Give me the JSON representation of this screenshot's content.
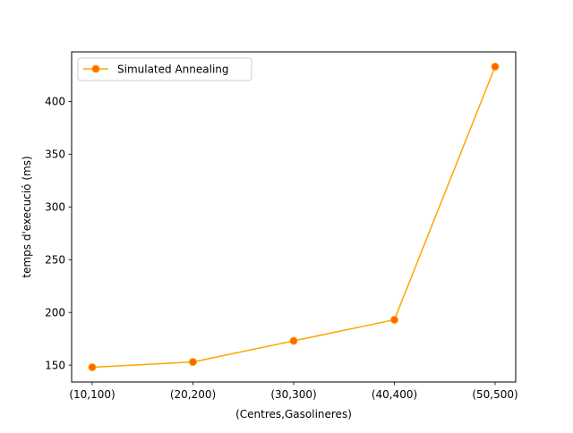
{
  "chart_data": {
    "type": "line",
    "title": "",
    "xlabel": "(Centres,Gasolineres)",
    "ylabel": "temps d'execució (ms)",
    "categories": [
      "(10,100)",
      "(20,200)",
      "(30,300)",
      "(40,400)",
      "(50,500)"
    ],
    "series": [
      {
        "name": "Simulated Annealing",
        "values": [
          148,
          153,
          173,
          193,
          433
        ],
        "line_color": "#ffa500",
        "marker_face_color": "#ff6600",
        "marker_edge_color": "#ffa500"
      }
    ],
    "ylim": [
      134,
      447
    ],
    "yticks": [
      150,
      200,
      250,
      300,
      350,
      400
    ],
    "grid": false,
    "legend_position": "top-left"
  }
}
